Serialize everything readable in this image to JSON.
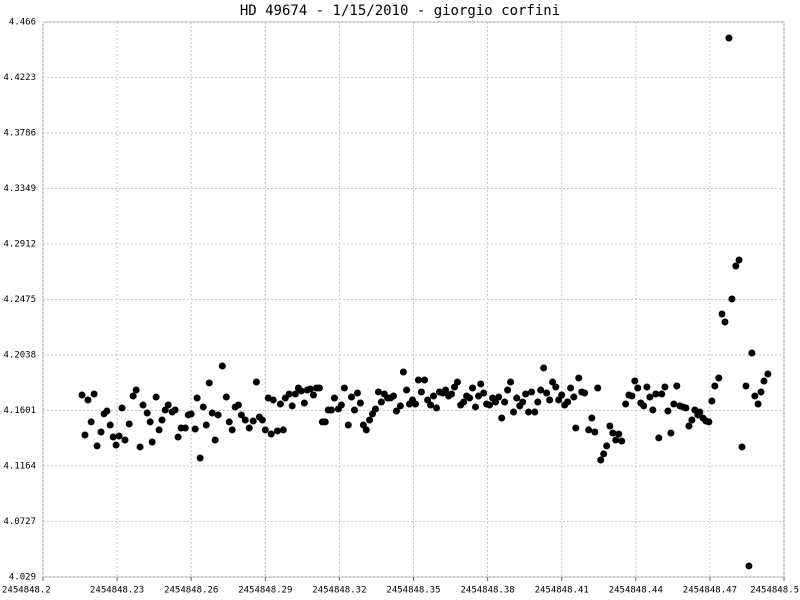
{
  "chart_data": {
    "type": "scatter",
    "title": "HD 49674 - 1/15/2010 - giorgio corfini",
    "color": "#000000",
    "grid": true,
    "xlim": [
      2454848.2,
      2454848.5
    ],
    "xticks": [
      2454848.2,
      2454848.23,
      2454848.26,
      2454848.29,
      2454848.32,
      2454848.35,
      2454848.38,
      2454848.41,
      2454848.44,
      2454848.47,
      2454848.5
    ],
    "ylim": [
      4.029,
      4.466
    ],
    "yticks": [
      4.029,
      4.0727,
      4.1164,
      4.1601,
      4.2038,
      4.2475,
      4.2912,
      4.3349,
      4.3786,
      4.4223,
      4.466
    ],
    "x": [
      2454848.2158,
      2454848.217,
      2454848.2182,
      2454848.2195,
      2454848.2207,
      2454848.2219,
      2454848.2235,
      2454848.2247,
      2454848.2259,
      2454848.2272,
      2454848.2284,
      2454848.2296,
      2454848.2308,
      2454848.232,
      2454848.2332,
      2454848.2349,
      2454848.2365,
      2454848.2377,
      2454848.2393,
      2454848.2405,
      2454848.2422,
      2454848.2434,
      2454848.2442,
      2454848.2458,
      2454848.247,
      2454848.2482,
      2454848.2495,
      2454848.2507,
      2454848.2523,
      2454848.2535,
      2454848.2547,
      2454848.2559,
      2454848.2576,
      2454848.2588,
      2454848.26,
      2454848.2616,
      2454848.2624,
      2454848.2636,
      2454848.2649,
      2454848.2661,
      2454848.2673,
      2454848.2685,
      2454848.2697,
      2454848.2709,
      2454848.2726,
      2454848.2742,
      2454848.2754,
      2454848.2766,
      2454848.2778,
      2454848.2791,
      2454848.2803,
      2454848.2819,
      2454848.2835,
      2454848.2851,
      2454848.2864,
      2454848.2876,
      2454848.2888,
      2454848.29,
      2454848.2912,
      2454848.2924,
      2454848.2932,
      2454848.2949,
      2454848.2961,
      2454848.2973,
      2454848.2981,
      2454848.2997,
      2454848.3009,
      2454848.3022,
      2454848.3034,
      2454848.3046,
      2454848.3058,
      2454848.307,
      2454848.3082,
      2454848.3095,
      2454848.3107,
      2454848.3119,
      2454848.3131,
      2454848.3143,
      2454848.3155,
      2454848.3168,
      2454848.318,
      2454848.3196,
      2454848.3208,
      2454848.322,
      2454848.3236,
      2454848.3249,
      2454848.3261,
      2454848.3273,
      2454848.3285,
      2454848.3297,
      2454848.3309,
      2454848.3322,
      2454848.3334,
      2454848.3346,
      2454848.3358,
      2454848.337,
      2454848.3382,
      2454848.3395,
      2454848.3407,
      2454848.3419,
      2454848.3431,
      2454848.3447,
      2454848.3459,
      2454848.3472,
      2454848.3484,
      2454848.3496,
      2454848.3508,
      2454848.352,
      2454848.3532,
      2454848.3545,
      2454848.3557,
      2454848.3569,
      2454848.3581,
      2454848.3593,
      2454848.3605,
      2454848.3618,
      2454848.363,
      2454848.3642,
      2454848.3654,
      2454848.3666,
      2454848.3678,
      2454848.3691,
      2454848.3703,
      2454848.3715,
      2454848.3727,
      2454848.3739,
      2454848.3751,
      2454848.3763,
      2454848.3772,
      2454848.3784,
      2454848.3796,
      2454848.3808,
      2454848.382,
      2454848.3832,
      2454848.3845,
      2454848.3857,
      2454848.3869,
      2454848.3881,
      2454848.3893,
      2454848.3905,
      2454848.3918,
      2454848.393,
      2454848.3942,
      2454848.3954,
      2454848.3966,
      2454848.3978,
      2454848.3991,
      2454848.4003,
      2454848.4015,
      2454848.4027,
      2454848.4039,
      2454848.4051,
      2454848.4063,
      2454848.4076,
      2454848.4088,
      2454848.41,
      2454848.4112,
      2454848.4124,
      2454848.4136,
      2454848.4149,
      2454848.4157,
      2454848.4169,
      2454848.4181,
      2454848.4193,
      2454848.4209,
      2454848.4222,
      2454848.4234,
      2454848.4246,
      2454848.4258,
      2454848.427,
      2454848.4282,
      2454848.4295,
      2454848.4307,
      2454848.4319,
      2454848.4331,
      2454848.4343,
      2454848.4359,
      2454848.4372,
      2454848.4384,
      2454848.4396,
      2454848.4408,
      2454848.442,
      2454848.4432,
      2454848.4445,
      2454848.4457,
      2454848.4469,
      2454848.4481,
      2454848.4493,
      2454848.4505,
      2454848.4518,
      2454848.453,
      2454848.4542,
      2454848.4554,
      2454848.4566,
      2454848.4578,
      2454848.4591,
      2454848.4603,
      2454848.4615,
      2454848.4627,
      2454848.4639,
      2454848.4651,
      2454848.4659,
      2454848.4672,
      2454848.4684,
      2454848.4696,
      2454848.4708,
      2454848.472,
      2454848.4736,
      2454848.4749,
      2454848.4761,
      2454848.4777,
      2454848.4789,
      2454848.4805,
      2454848.4818,
      2454848.483,
      2454848.4846,
      2454848.4858,
      2454848.487,
      2454848.4882,
      2454848.4895,
      2454848.4907,
      2454848.4919,
      2454848.4935
    ],
    "values": [
      4.1723,
      4.1408,
      4.1684,
      4.1511,
      4.1731,
      4.1322,
      4.1432,
      4.1574,
      4.1597,
      4.1487,
      4.1392,
      4.1329,
      4.14,
      4.1621,
      4.1369,
      4.1495,
      4.1715,
      4.1762,
      4.1314,
      4.1644,
      4.1581,
      4.1511,
      4.1353,
      4.1707,
      4.1448,
      4.1526,
      4.1605,
      4.1644,
      4.1589,
      4.1605,
      4.1392,
      4.1463,
      4.1463,
      4.1566,
      4.1574,
      4.1455,
      4.1699,
      4.1227,
      4.1629,
      4.1487,
      4.1818,
      4.1581,
      4.1369,
      4.1566,
      4.1951,
      4.1707,
      4.1511,
      4.1448,
      4.1629,
      4.1644,
      4.1566,
      4.1526,
      4.1463,
      4.1518,
      4.1825,
      4.155,
      4.1526,
      4.1448,
      4.1699,
      4.1416,
      4.1684,
      4.144,
      4.1652,
      4.1448,
      4.1699,
      4.1731,
      4.1637,
      4.1731,
      4.1778,
      4.1755,
      4.166,
      4.1762,
      4.177,
      4.1723,
      4.1778,
      4.1778,
      4.1511,
      4.1511,
      4.1605,
      4.1605,
      4.1699,
      4.1613,
      4.1644,
      4.1778,
      4.1487,
      4.1707,
      4.1605,
      4.1739,
      4.166,
      4.1487,
      4.1448,
      4.1526,
      4.1574,
      4.1613,
      4.1747,
      4.1668,
      4.1731,
      4.1699,
      4.1699,
      4.1715,
      4.1597,
      4.1637,
      4.1904,
      4.1762,
      4.1652,
      4.1684,
      4.1652,
      4.1841,
      4.1747,
      4.1841,
      4.1684,
      4.1644,
      4.1715,
      4.1621,
      4.1747,
      4.1739,
      4.1762,
      4.1715,
      4.1731,
      4.1786,
      4.1825,
      4.1644,
      4.1668,
      4.1715,
      4.1699,
      4.1778,
      4.1629,
      4.1715,
      4.181,
      4.1739,
      4.1652,
      4.1644,
      4.1699,
      4.1668,
      4.1707,
      4.1542,
      4.1668,
      4.1762,
      4.1825,
      4.1589,
      4.1699,
      4.1637,
      4.1668,
      4.1731,
      4.1589,
      4.1747,
      4.1589,
      4.1668,
      4.1762,
      4.1936,
      4.1739,
      4.1684,
      4.1825,
      4.1786,
      4.1684,
      4.1723,
      4.1644,
      4.1668,
      4.1778,
      4.1707,
      4.1463,
      4.1857,
      4.1747,
      4.1739,
      4.1448,
      4.1542,
      4.1432,
      4.1778,
      4.1211,
      4.1259,
      4.1322,
      4.1479,
      4.1424,
      4.1369,
      4.1416,
      4.1361,
      4.1652,
      4.1723,
      4.1715,
      4.1833,
      4.1778,
      4.166,
      4.1637,
      4.1786,
      4.1707,
      4.1605,
      4.1731,
      4.1385,
      4.1731,
      4.1786,
      4.1597,
      4.1424,
      4.1652,
      4.1794,
      4.1637,
      4.1629,
      4.1621,
      4.1479,
      4.1526,
      4.1605,
      4.1566,
      4.1589,
      4.1542,
      4.1518,
      4.1511,
      4.1676,
      4.1794,
      4.1857,
      4.2361,
      4.2298,
      4.4534,
      4.2479,
      4.2739,
      4.2786,
      4.1314,
      4.1794,
      4.0377,
      4.2054,
      4.1715,
      4.1652,
      4.1747,
      4.1833,
      4.1888
    ]
  }
}
